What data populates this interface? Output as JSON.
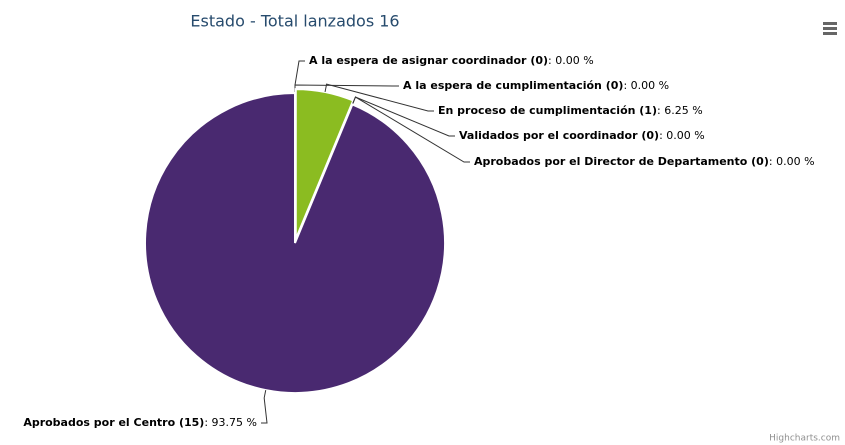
{
  "chart_data": {
    "type": "pie",
    "title": "Estado - Total lanzados 16",
    "categories": [
      "A la espera de asignar coordinador (0)",
      "A la espera de cumplimentación (0)",
      "En proceso de cumplimentación (1)",
      "Validados por el coordinador (0)",
      "Aprobados por el Director de Departamento (0)",
      "Aprobados por el Centro (15)"
    ],
    "values": [
      0,
      0,
      6.25,
      0,
      0,
      93.75
    ],
    "value_labels": [
      "0.00 %",
      "0.00 %",
      "6.25 %",
      "0.00 %",
      "0.00 %",
      "93.75 %"
    ],
    "label_separator": ": ",
    "colors": [
      "#2f7ed8",
      "#0d233a",
      "#8bbc21",
      "#910000",
      "#1aadce",
      "#492970"
    ],
    "sliced": [
      false,
      false,
      true,
      false,
      false,
      false
    ],
    "credits": "Highcharts.com"
  }
}
